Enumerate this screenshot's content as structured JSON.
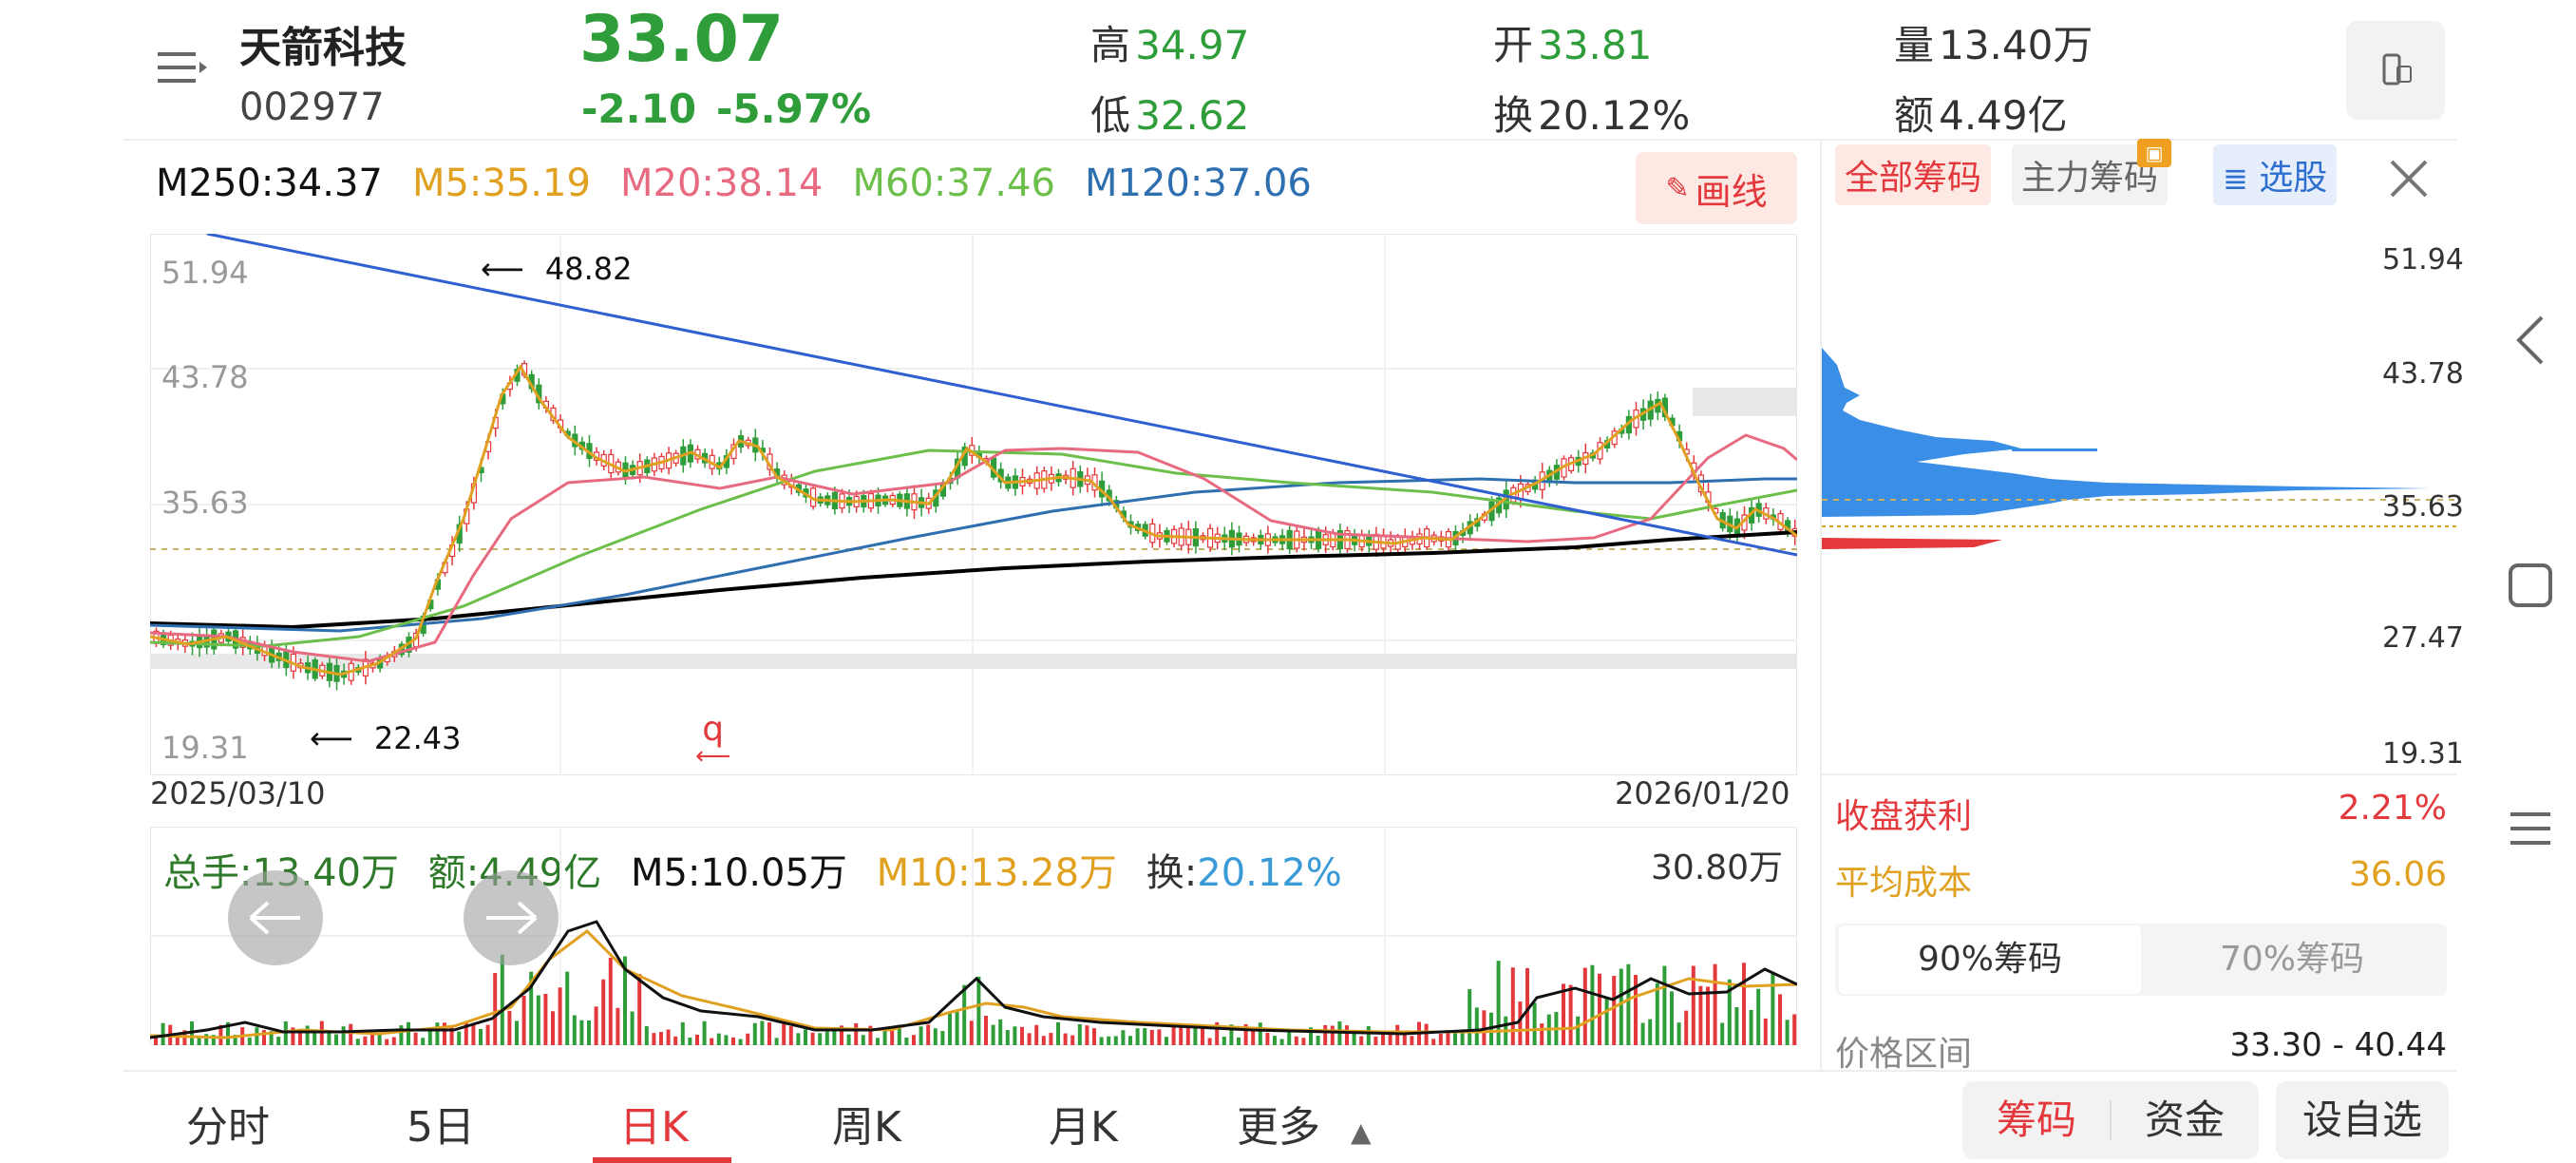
{
  "header": {
    "menu_icon": "list-menu-icon",
    "stock_name": "天箭科技",
    "stock_code": "002977",
    "price": "33.07",
    "change": "-2.10",
    "change_pct": "-5.97%",
    "high_label": "高",
    "high_value": "34.97",
    "low_label": "低",
    "low_value": "32.62",
    "open_label": "开",
    "open_value": "33.81",
    "turnover_label": "换",
    "turnover_value": "20.12%",
    "volume_label": "量",
    "volume_value": "13.40万",
    "amount_label": "额",
    "amount_value": "4.49亿",
    "device_icon": "phone-landscape-icon"
  },
  "ma_legend": {
    "m250": "M250:34.37",
    "m5": "M5:35.19",
    "m20": "M20:38.14",
    "m60": "M60:37.46",
    "m120": "M120:37.06"
  },
  "draw_button": "画线",
  "kline": {
    "y_max_label": "51.94",
    "y_2_label": "43.78",
    "y_3_label": "35.63",
    "y_min_label": "19.31",
    "high_marker": "48.82",
    "low_marker": "22.43",
    "start_date": "2025/03/10",
    "end_date": "2026/01/20",
    "annotation": "q"
  },
  "volume": {
    "total_hands": "总手:13.40万",
    "amount": "额:4.49亿",
    "m5": "M5:10.05万",
    "m10": "M10:13.28万",
    "turnover_label": "换:",
    "turnover_value": "20.12%",
    "max_label": "30.80万"
  },
  "chip_panel": {
    "tabs": [
      "全部筹码",
      "主力筹码",
      "选股"
    ],
    "price_labels": [
      "51.94",
      "43.78",
      "35.63",
      "27.47",
      "19.31"
    ],
    "profit_label": "收盘获利",
    "profit_value": "2.21%",
    "avg_cost_label": "平均成本",
    "avg_cost_value": "36.06",
    "seg_90": "90%筹码",
    "seg_70": "70%筹码",
    "range_label": "价格区间",
    "range_value": "33.30 - 40.44"
  },
  "bottom_tabs": [
    "分时",
    "5日",
    "日K",
    "周K",
    "月K",
    "更多"
  ],
  "bottom_buttons": {
    "chips": "筹码",
    "funds": "资金",
    "watchlist": "设自选"
  },
  "colors": {
    "up": "#e4393c",
    "down": "#2f9d3a",
    "m5": "#e0a020",
    "m20": "#e86a80",
    "m60": "#6cbf4a",
    "m120": "#2e6fb0",
    "m250": "#000000",
    "chip_blue": "#3a8ee6",
    "chip_red": "#e4393c"
  }
}
